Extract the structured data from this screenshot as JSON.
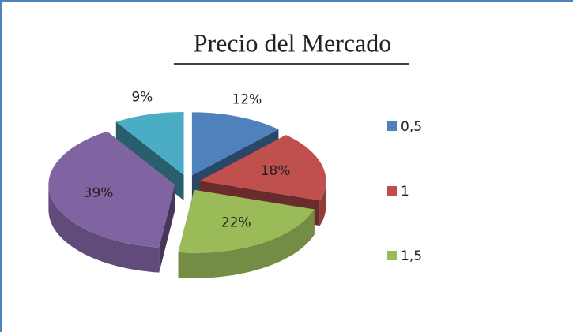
{
  "chart_data": {
    "type": "pie3d",
    "title": "Precio del Mercado",
    "categories": [
      "0,5",
      "1",
      "1,5",
      null,
      null
    ],
    "values": [
      12,
      18,
      22,
      39,
      9
    ],
    "value_labels": [
      "12%",
      "18%",
      "22%",
      "39%",
      "9%"
    ],
    "colors": [
      "#4f81bd",
      "#c0504d",
      "#9bbb59",
      "#8064a2",
      "#4bacc6"
    ],
    "legend": "right"
  }
}
